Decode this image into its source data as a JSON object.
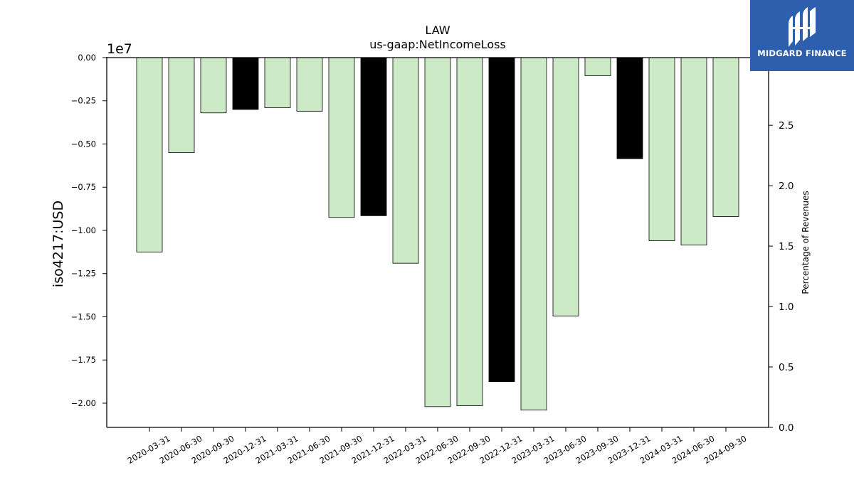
{
  "chart_data": {
    "type": "bar",
    "title": "LAW",
    "subtitle": "us-gaap:NetIncomeLoss",
    "ylabel": "iso4217:USD",
    "y_offset_label": "1e7",
    "y2label": "Percentage of Revenues",
    "ylim": [
      -21400000.0,
      0
    ],
    "y2lim": [
      0,
      3.06
    ],
    "yticks": [
      "0.00",
      "−0.25",
      "−0.50",
      "−0.75",
      "−1.00",
      "−1.25",
      "−1.50",
      "−1.75",
      "−2.00"
    ],
    "y2ticks": [
      "0.0",
      "0.5",
      "1.0",
      "1.5",
      "2.0",
      "2.5"
    ],
    "grid": false,
    "categories": [
      "2020-03-31",
      "2020-06-30",
      "2020-09-30",
      "2020-12-31",
      "2021-03-31",
      "2021-06-30",
      "2021-09-30",
      "2021-12-31",
      "2022-03-31",
      "2022-06-30",
      "2022-09-30",
      "2022-12-31",
      "2023-03-31",
      "2023-06-30",
      "2023-09-30",
      "2023-12-31",
      "2024-03-31",
      "2024-06-30",
      "2024-09-30"
    ],
    "values": [
      -11250000,
      -5500000,
      -3200000,
      -3000000,
      -2900000,
      -3100000,
      -9250000,
      -9150000,
      -11900000,
      -20200000,
      -20150000,
      -18750000,
      -20400000,
      -14950000,
      -1050000,
      -5850000,
      -10600000,
      -10850000,
      -9200000
    ],
    "bar_colors": [
      "#cdeac6",
      "#cdeac6",
      "#cdeac6",
      "#000000",
      "#cdeac6",
      "#cdeac6",
      "#cdeac6",
      "#000000",
      "#cdeac6",
      "#cdeac6",
      "#cdeac6",
      "#000000",
      "#cdeac6",
      "#cdeac6",
      "#cdeac6",
      "#000000",
      "#cdeac6",
      "#cdeac6",
      "#cdeac6"
    ]
  },
  "brand": {
    "name": "MIDGARD FINANCE",
    "color": "#2d5fae"
  }
}
